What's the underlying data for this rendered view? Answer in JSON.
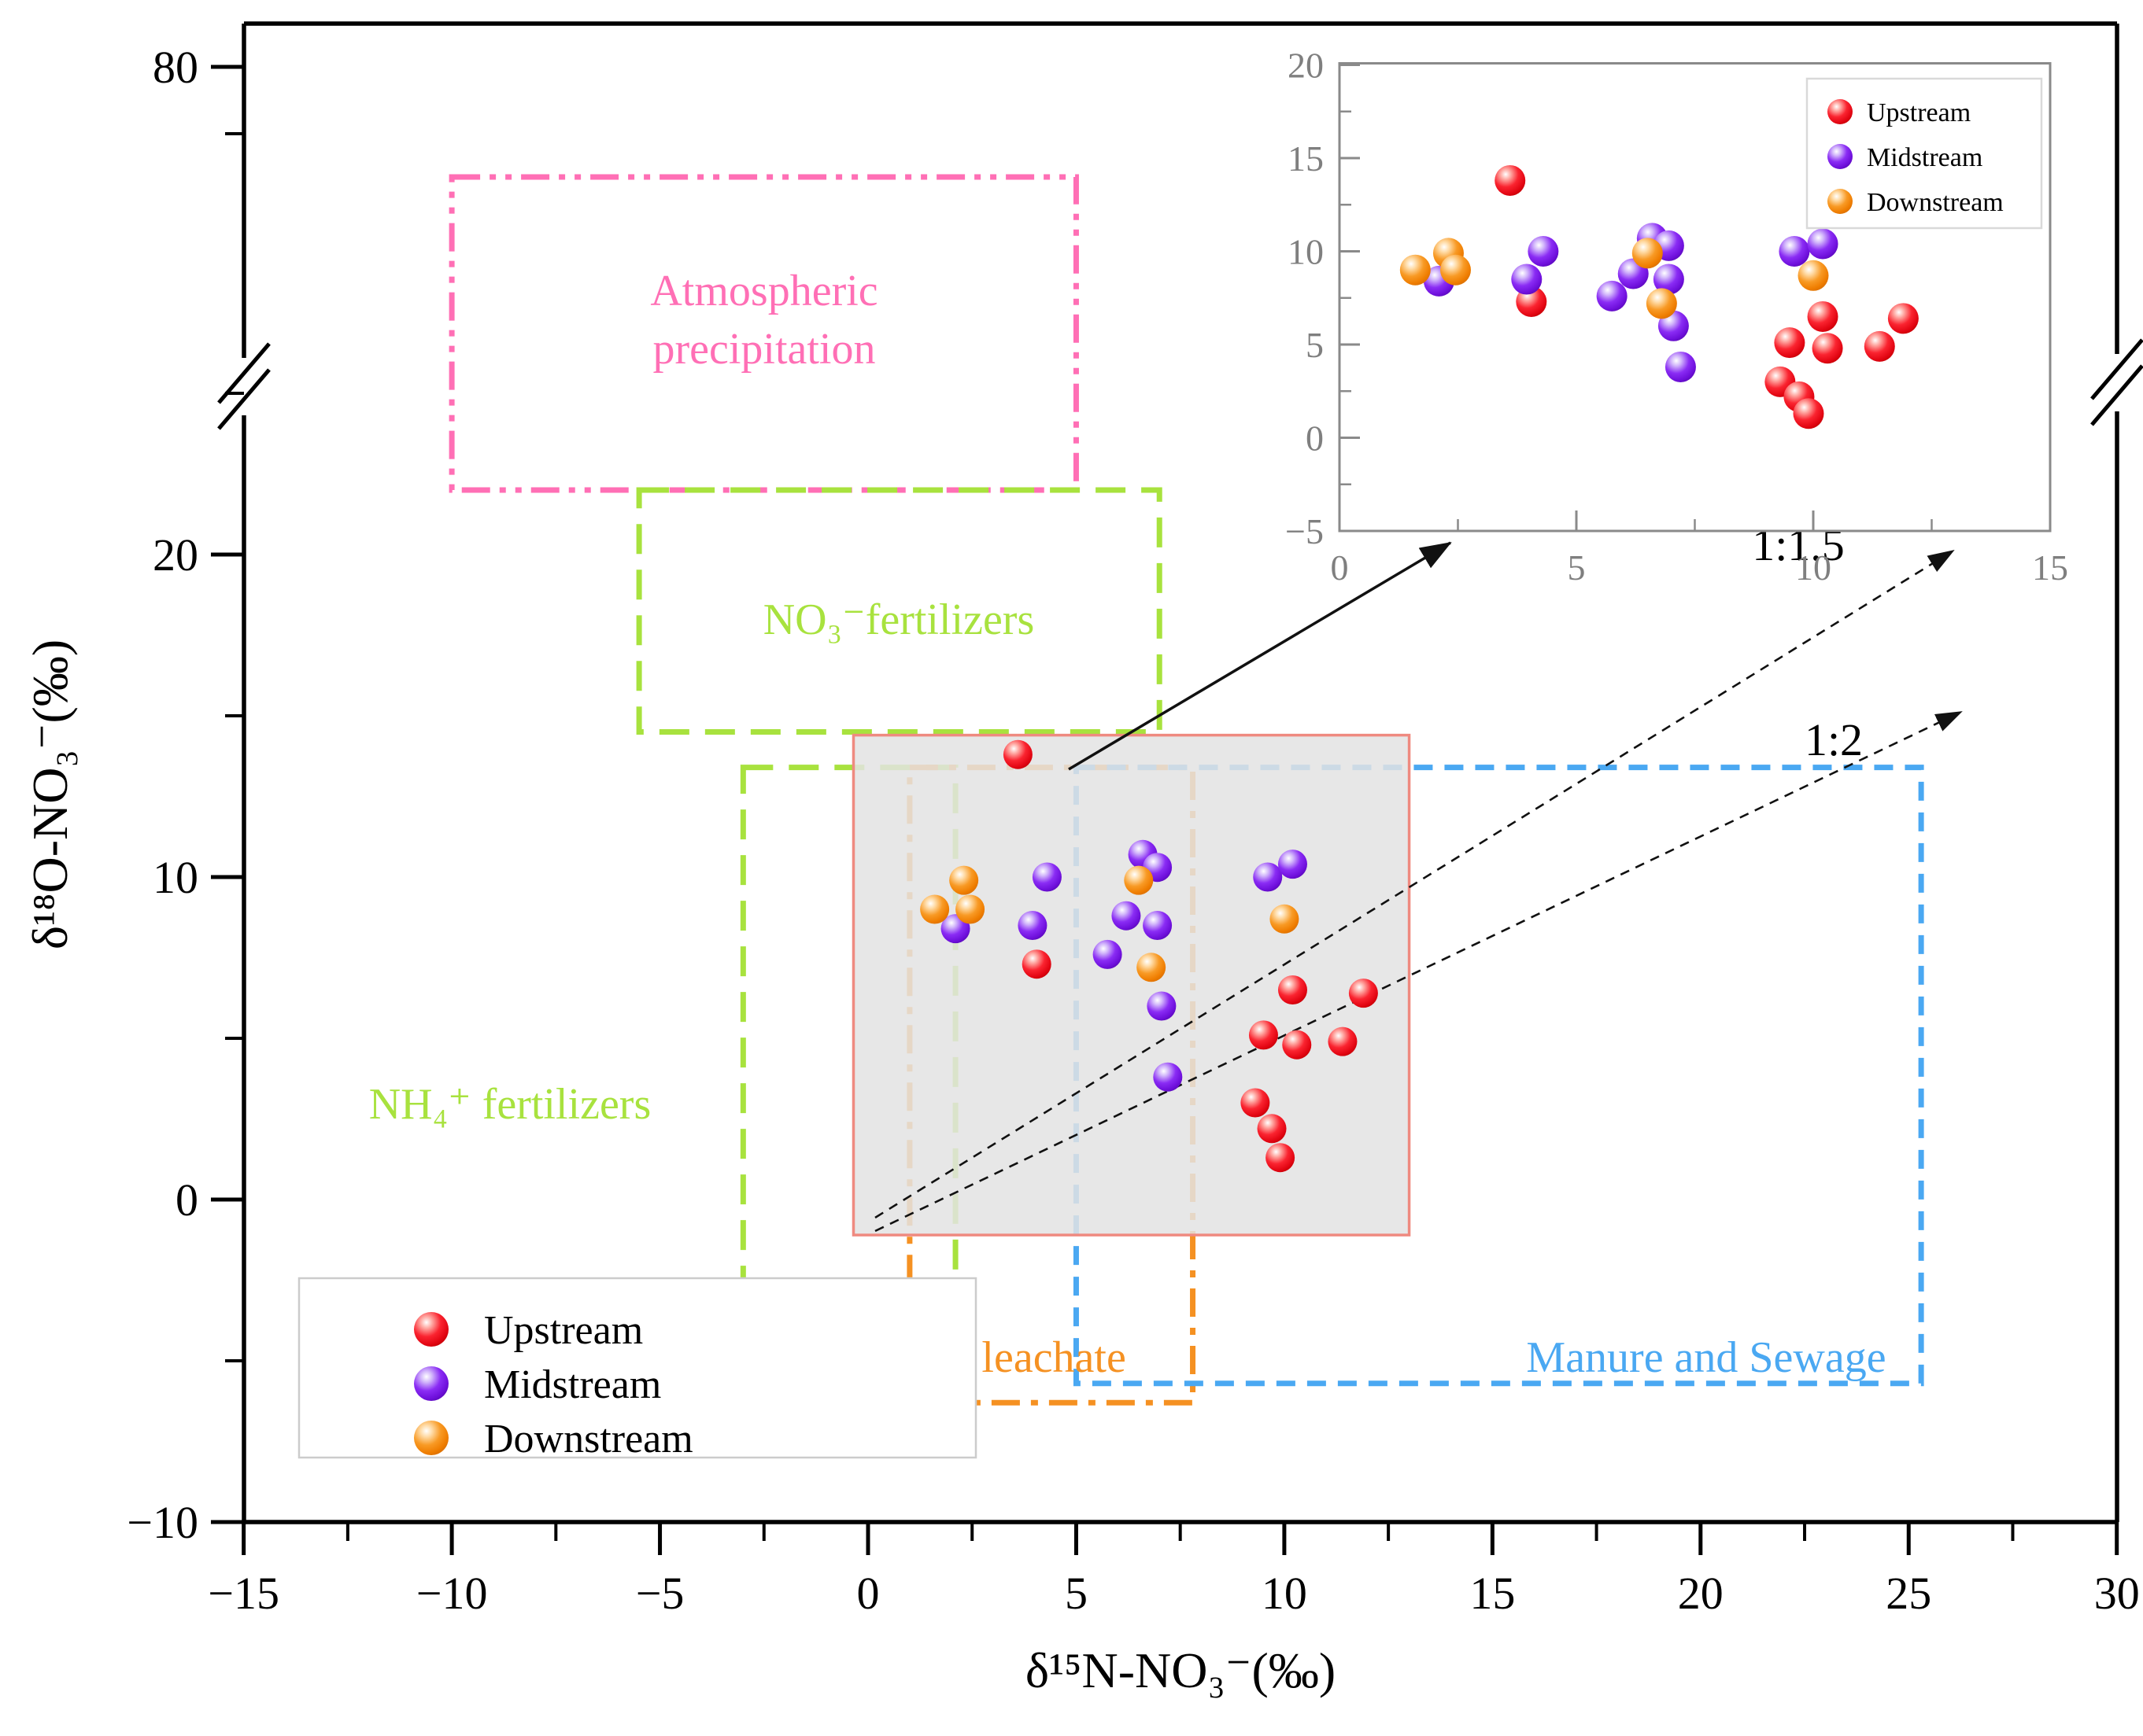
{
  "chart_data": {
    "type": "scatter",
    "title": "",
    "xlabel": "δ¹⁵N-NO₃⁻(‰)",
    "ylabel": "δ¹⁸O-NO₃⁻(‰)",
    "x_range": [
      -15,
      30
    ],
    "x_ticks": [
      -15,
      -10,
      -5,
      0,
      5,
      10,
      15,
      20,
      25,
      30
    ],
    "y_axis": {
      "linear_range": [
        -10,
        25
      ],
      "ticks": [
        -10,
        0,
        10,
        20
      ],
      "minor_ticks": [
        -5,
        5,
        15,
        25
      ],
      "break_above": 25,
      "top_tick_label": "80"
    },
    "series": [
      {
        "name": "Upstream",
        "color": "#f3101f",
        "points": [
          [
            3.6,
            13.8
          ],
          [
            4.05,
            7.3
          ],
          [
            9.5,
            5.1
          ],
          [
            10.2,
            6.5
          ],
          [
            10.3,
            4.8
          ],
          [
            11.9,
            6.4
          ],
          [
            11.4,
            4.9
          ],
          [
            9.3,
            3.0
          ],
          [
            9.7,
            2.2
          ],
          [
            9.9,
            1.3
          ]
        ]
      },
      {
        "name": "Midstream",
        "color": "#7d1ff0",
        "points": [
          [
            2.1,
            8.4
          ],
          [
            4.3,
            10.0
          ],
          [
            3.95,
            8.5
          ],
          [
            5.75,
            7.6
          ],
          [
            6.2,
            8.8
          ],
          [
            6.6,
            10.7
          ],
          [
            6.95,
            10.3
          ],
          [
            6.95,
            8.5
          ],
          [
            7.05,
            6.0
          ],
          [
            7.2,
            3.8
          ],
          [
            9.6,
            10.0
          ],
          [
            10.2,
            10.4
          ]
        ]
      },
      {
        "name": "Downstream",
        "color": "#f8941d",
        "points": [
          [
            1.6,
            9.0
          ],
          [
            2.3,
            9.9
          ],
          [
            2.45,
            9.0
          ],
          [
            6.5,
            9.9
          ],
          [
            6.8,
            7.2
          ],
          [
            10.0,
            8.7
          ]
        ]
      }
    ],
    "source_regions": [
      {
        "name": "atmospheric-precipitation",
        "label_lines": [
          "Atmospheric",
          "precipitation"
        ],
        "color": "#ff6fb5",
        "line_style": "dash-dot-dot",
        "x": [
          -10,
          5
        ],
        "y": [
          22,
          70
        ]
      },
      {
        "name": "no3-fertilizers",
        "label_lines": [
          "NO₃⁻fertilizers"
        ],
        "color": "#a8e23e",
        "line_style": "long-dash",
        "x": [
          -5.5,
          7
        ],
        "y": [
          14.5,
          22
        ]
      },
      {
        "name": "nh4-fertilizers",
        "label_lines": [
          "NH₄⁺  fertilizers"
        ],
        "color": "#a8e23e",
        "line_style": "long-dash",
        "x": [
          -3.0,
          2.1
        ],
        "y": [
          -6.6,
          13.4
        ]
      },
      {
        "name": "soil-leachate",
        "label_lines": [
          "Soil leachate"
        ],
        "color": "#f59122",
        "line_style": "dash-dot",
        "x": [
          1.0,
          7.8
        ],
        "y": [
          -6.3,
          13.4
        ]
      },
      {
        "name": "manure-and-sewage",
        "label_lines": [
          "Manure and Sewage"
        ],
        "color": "#4aa8f2",
        "line_style": "dash",
        "x": [
          5.0,
          25.3
        ],
        "y": [
          -5.7,
          13.4
        ]
      }
    ],
    "zoom_box": {
      "x": [
        -0.35,
        13.0
      ],
      "y": [
        -1.1,
        14.4
      ],
      "fill": "#e3e3e3",
      "border": "#ef8a80"
    },
    "ratio_annotations": [
      {
        "label": "1:1.5"
      },
      {
        "label": "1:2"
      }
    ],
    "legend": {
      "position": "bottom-left",
      "entries": [
        "Upstream",
        "Midstream",
        "Downstream"
      ]
    },
    "inset": {
      "x_range": [
        0,
        15
      ],
      "y_range": [
        -5,
        20
      ],
      "x_ticks": [
        0,
        5,
        10,
        15
      ],
      "y_ticks": [
        -5,
        0,
        5,
        10,
        15,
        20
      ],
      "legend": [
        "Upstream",
        "Midstream",
        "Downstream"
      ],
      "note": "zoom of shaded box region"
    }
  }
}
